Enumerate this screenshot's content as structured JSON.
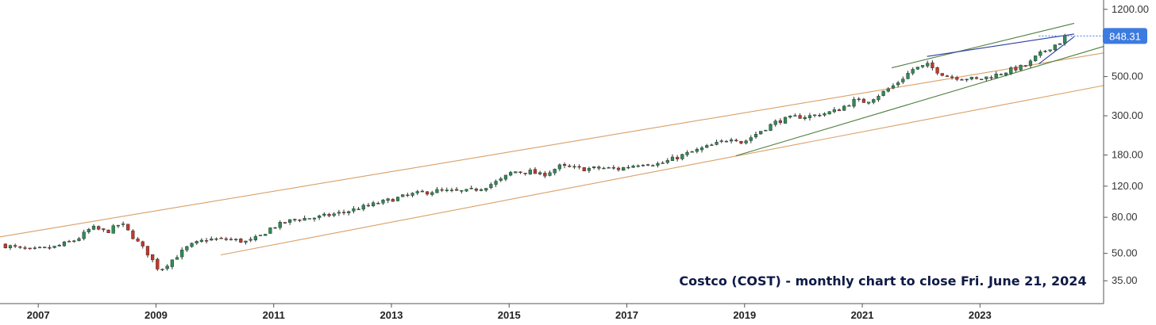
{
  "caption": "Costco (COST) - monthly chart to close Fri. June 21, 2024",
  "colors": {
    "up": "#2e8b57",
    "down": "#c0392b",
    "wick": "#333333",
    "channel": "#d9a066",
    "trend": "#4f7f3f",
    "wedge": "#2c3ea0",
    "price_label_bg": "#3c7be0",
    "axis": "#555555"
  },
  "chart_data": {
    "type": "candlestick",
    "title": "",
    "ylabel": "",
    "xlabel": "",
    "yscale": "log",
    "ylim": [
      26,
      1300
    ],
    "xlim": [
      2006.35,
      2025.1
    ],
    "yticks": [
      35,
      50,
      80,
      120,
      180,
      300,
      500,
      1200
    ],
    "ytick_labels": [
      "35.00",
      "50.00",
      "80.00",
      "120.00",
      "180.00",
      "300.00",
      "500.00",
      "1200.00"
    ],
    "xticks": [
      2007,
      2009,
      2011,
      2013,
      2015,
      2017,
      2019,
      2021,
      2023
    ],
    "xtick_labels": [
      "2007",
      "2009",
      "2011",
      "2013",
      "2015",
      "2017",
      "2019",
      "2021",
      "2023"
    ],
    "last_price": 848.31,
    "last_price_label": "848.31",
    "anchors": [
      [
        2006.4,
        56
      ],
      [
        2006.9,
        52
      ],
      [
        2007.3,
        54
      ],
      [
        2007.7,
        60
      ],
      [
        2007.95,
        70
      ],
      [
        2008.2,
        66
      ],
      [
        2008.45,
        74
      ],
      [
        2008.65,
        62
      ],
      [
        2008.9,
        50
      ],
      [
        2009.1,
        40
      ],
      [
        2009.35,
        47
      ],
      [
        2009.6,
        55
      ],
      [
        2009.9,
        60
      ],
      [
        2010.3,
        60
      ],
      [
        2010.6,
        58
      ],
      [
        2010.8,
        62
      ],
      [
        2011.0,
        70
      ],
      [
        2011.4,
        78
      ],
      [
        2011.8,
        80
      ],
      [
        2012.2,
        85
      ],
      [
        2012.6,
        92
      ],
      [
        2013.0,
        100
      ],
      [
        2013.4,
        108
      ],
      [
        2013.8,
        113
      ],
      [
        2014.0,
        112
      ],
      [
        2014.3,
        112
      ],
      [
        2014.6,
        118
      ],
      [
        2014.9,
        130
      ],
      [
        2015.1,
        145
      ],
      [
        2015.4,
        145
      ],
      [
        2015.6,
        138
      ],
      [
        2015.9,
        155
      ],
      [
        2016.3,
        150
      ],
      [
        2016.6,
        152
      ],
      [
        2016.9,
        150
      ],
      [
        2017.3,
        162
      ],
      [
        2017.6,
        160
      ],
      [
        2017.9,
        175
      ],
      [
        2018.2,
        190
      ],
      [
        2018.6,
        210
      ],
      [
        2018.85,
        228
      ],
      [
        2019.0,
        210
      ],
      [
        2019.3,
        245
      ],
      [
        2019.6,
        280
      ],
      [
        2019.9,
        295
      ],
      [
        2020.2,
        300
      ],
      [
        2020.6,
        320
      ],
      [
        2020.9,
        365
      ],
      [
        2021.1,
        360
      ],
      [
        2021.3,
        390
      ],
      [
        2021.6,
        450
      ],
      [
        2021.9,
        550
      ],
      [
        2022.15,
        580
      ],
      [
        2022.3,
        540
      ],
      [
        2022.5,
        500
      ],
      [
        2022.8,
        490
      ],
      [
        2023.0,
        480
      ],
      [
        2023.3,
        510
      ],
      [
        2023.6,
        550
      ],
      [
        2023.85,
        580
      ],
      [
        2024.0,
        650
      ],
      [
        2024.2,
        720
      ],
      [
        2024.45,
        800
      ],
      [
        2024.47,
        848.31
      ]
    ],
    "lines": [
      {
        "name": "",
        "style": "channel-upper",
        "points": [
          [
            2006.35,
            62
          ],
          [
            2025.1,
            680
          ]
        ]
      },
      {
        "name": "",
        "style": "channel-lower",
        "points": [
          [
            2010.1,
            49
          ],
          [
            2025.1,
            445
          ]
        ]
      },
      {
        "name": "",
        "style": "trend",
        "points": [
          [
            2018.85,
            178
          ],
          [
            2025.1,
            740
          ]
        ]
      },
      {
        "name": "",
        "style": "trend",
        "points": [
          [
            2021.5,
            560
          ],
          [
            2024.6,
            1000
          ]
        ]
      },
      {
        "name": "",
        "style": "wedge",
        "points": [
          [
            2022.1,
            650
          ],
          [
            2024.6,
            870
          ]
        ]
      },
      {
        "name": "",
        "style": "wedge",
        "points": [
          [
            2024.0,
            590
          ],
          [
            2024.6,
            840
          ]
        ]
      }
    ]
  }
}
